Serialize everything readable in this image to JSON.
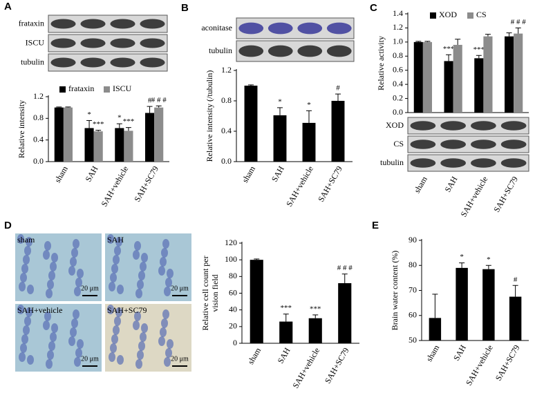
{
  "chart_data": [
    {
      "type": "bar",
      "panel": "A",
      "blot_labels": [
        "frataxin",
        "ISCU",
        "tubulin"
      ],
      "y_label": [
        "Relative intensity"
      ],
      "categories": [
        "sham",
        "SAH",
        "SAH+vehicle",
        "SAH+SC79"
      ],
      "series": [
        {
          "name": "frataxin",
          "color": "#000000",
          "values": [
            1.0,
            0.62,
            0.62,
            0.9
          ],
          "errors": [
            0.01,
            0.14,
            0.08,
            0.12
          ],
          "annotations": [
            null,
            "*",
            "*",
            "#"
          ]
        },
        {
          "name": "ISCU",
          "color": "#8c8c8c",
          "values": [
            1.0,
            0.56,
            0.57,
            1.0
          ],
          "errors": [
            0.01,
            0.02,
            0.06,
            0.03
          ],
          "annotations": [
            null,
            "***",
            "***",
            "# # #"
          ]
        }
      ],
      "ylim": [
        0,
        1.2
      ],
      "yticks": [
        {
          "value": 0,
          "label": "0.0"
        },
        0.4,
        0.8,
        1.2
      ]
    },
    {
      "type": "bar",
      "panel": "B",
      "blot_labels": [
        "aconitase",
        "tubulin"
      ],
      "y_label": [
        "Relative intensity (/tubulin)"
      ],
      "categories": [
        "sham",
        "SAH",
        "SAH+vehicle",
        "SAH+SC79"
      ],
      "series": [
        {
          "color": "#000000",
          "values": [
            1.0,
            0.61,
            0.51,
            0.8
          ],
          "errors": [
            0.01,
            0.1,
            0.16,
            0.09
          ],
          "annotations": [
            null,
            "*",
            "*",
            "#"
          ]
        }
      ],
      "ylim": [
        0,
        1.2
      ],
      "yticks": [
        {
          "value": 0,
          "label": "0.0"
        },
        0.4,
        0.8,
        1.2
      ]
    },
    {
      "type": "bar",
      "panel": "C",
      "blot_labels": [
        "XOD",
        "CS",
        "tubulin"
      ],
      "y_label": [
        "Relative activity"
      ],
      "categories": [
        "sham",
        "SAH",
        "SAH+vehicle",
        "SAH+SC79"
      ],
      "series": [
        {
          "name": "XOD",
          "color": "#000000",
          "values": [
            1.0,
            0.73,
            0.77,
            1.08
          ],
          "errors": [
            0.01,
            0.09,
            0.04,
            0.05
          ],
          "annotations": [
            null,
            "***",
            "***",
            null
          ]
        },
        {
          "name": "CS",
          "color": "#8c8c8c",
          "values": [
            1.0,
            0.96,
            1.08,
            1.12
          ],
          "errors": [
            0.01,
            0.08,
            0.03,
            0.08
          ],
          "annotations": [
            null,
            null,
            null,
            "# # #"
          ]
        }
      ],
      "ylim": [
        0,
        1.4
      ],
      "yticks": [
        {
          "value": 0,
          "label": "0.0"
        },
        0.2,
        0.4,
        0.6,
        0.8,
        {
          "value": 1,
          "label": "1.0"
        },
        1.2,
        1.4
      ]
    },
    {
      "type": "bar",
      "panel": "D",
      "images": [
        {
          "label": "sham",
          "scale": "20 μm"
        },
        {
          "label": "SAH",
          "scale": "20 μm"
        },
        {
          "label": "SAH+vehicle",
          "scale": "20 μm"
        },
        {
          "label": "SAH+SC79",
          "scale": "20 μm"
        }
      ],
      "y_label": [
        "Relative cell count per",
        "vision field"
      ],
      "categories": [
        "sham",
        "SAH",
        "SAH+vehicle",
        "SAH+SC79"
      ],
      "series": [
        {
          "color": "#000000",
          "values": [
            100,
            26,
            30,
            72
          ],
          "errors": [
            1,
            9,
            4,
            11
          ],
          "annotations": [
            null,
            "***",
            "***",
            "# # #"
          ]
        }
      ],
      "ylim": [
        0,
        120
      ],
      "yticks": [
        0,
        20,
        40,
        60,
        80,
        100,
        120
      ]
    },
    {
      "type": "bar",
      "panel": "E",
      "y_label": [
        "Brain water content (%)"
      ],
      "categories": [
        "sham",
        "SAH",
        "SAH+vehicle",
        "SAH+SC79"
      ],
      "series": [
        {
          "color": "#000000",
          "values": [
            59,
            79,
            78.5,
            67.5
          ],
          "errors": [
            9.5,
            2,
            1.5,
            4.5
          ],
          "annotations": [
            null,
            "*",
            "*",
            "#"
          ]
        }
      ],
      "ylim": [
        50,
        90
      ],
      "yticks": [
        50,
        60,
        70,
        80,
        90
      ]
    }
  ]
}
